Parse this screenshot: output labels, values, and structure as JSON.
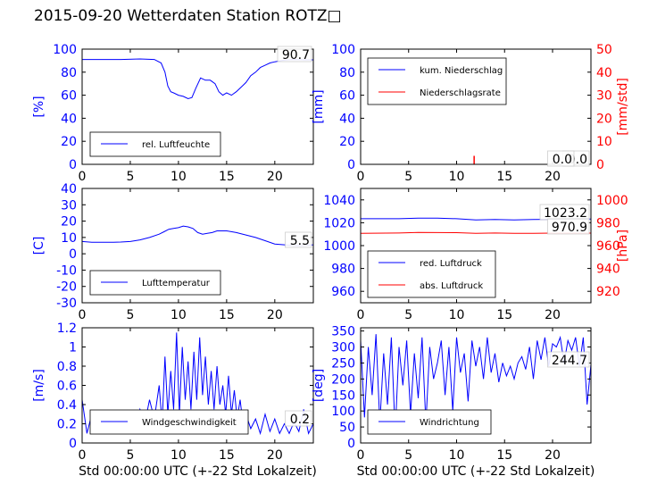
{
  "title": "2015-09-20 Wetterdaten Station ROTZ□",
  "chart_data": [
    {
      "type": "line",
      "xlim": [
        0,
        24
      ],
      "xticks": [
        0,
        5,
        10,
        15,
        20
      ],
      "ylabel": "[%]",
      "ylim": [
        0,
        100
      ],
      "yticks": [
        0,
        20,
        40,
        60,
        80,
        100
      ],
      "legend_position": "bottom-left",
      "series": [
        {
          "name": "rel. Luftfeuchte",
          "color": "#0000ff",
          "x": [
            0,
            2,
            4,
            6,
            7.5,
            8.2,
            8.6,
            8.9,
            9.2,
            9.5,
            10,
            10.5,
            11,
            11.4,
            11.8,
            12.3,
            12.8,
            13.3,
            13.8,
            14.2,
            14.6,
            15,
            15.5,
            16,
            16.5,
            17,
            17.5,
            18,
            18.5,
            19,
            19.5,
            20,
            21,
            22,
            23,
            24
          ],
          "values": [
            91,
            91,
            91,
            91.5,
            91,
            88,
            80,
            68,
            63,
            62,
            60,
            59,
            57,
            58,
            66,
            75,
            73,
            73,
            70,
            63,
            60,
            62,
            60,
            63,
            67,
            71,
            77,
            80,
            84,
            86,
            88,
            89,
            90.5,
            91,
            90.7,
            90.7
          ]
        }
      ],
      "annotations": [
        "90.7"
      ]
    },
    {
      "type": "line",
      "xlim": [
        0,
        24
      ],
      "xticks": [
        0,
        5,
        10,
        15,
        20
      ],
      "ylabel": "[mm]",
      "ylim": [
        0,
        100
      ],
      "yticks": [
        0,
        20,
        40,
        60,
        80,
        100
      ],
      "y2label": "[mm/std]",
      "y2lim": [
        0,
        50
      ],
      "y2ticks": [
        0,
        10,
        20,
        30,
        40,
        50
      ],
      "legend_position": "top-left",
      "series": [
        {
          "name": "kum. Niederschlag",
          "color": "#0000ff",
          "axis": "left",
          "x": [
            0,
            24
          ],
          "values": [
            0,
            0
          ]
        },
        {
          "name": "Niederschlagsrate",
          "color": "#ff0000",
          "axis": "right",
          "x": [
            0,
            11.8,
            11.8,
            11.85,
            11.85,
            24
          ],
          "values": [
            0,
            0,
            3.5,
            3.5,
            0,
            0
          ]
        }
      ],
      "annotations": [
        "0.0",
        "0.0"
      ]
    },
    {
      "type": "line",
      "xlim": [
        0,
        24
      ],
      "xticks": [
        0,
        5,
        10,
        15,
        20
      ],
      "ylabel": "[C]",
      "ylim": [
        -30,
        40
      ],
      "yticks": [
        -30,
        -20,
        -10,
        0,
        10,
        20,
        30,
        40
      ],
      "legend_position": "bottom-left",
      "series": [
        {
          "name": "Lufttemperatur",
          "color": "#0000ff",
          "x": [
            0,
            1,
            2,
            3,
            4,
            5,
            6,
            7,
            8,
            8.5,
            9,
            9.5,
            10,
            10.5,
            11,
            11.5,
            12,
            12.5,
            13,
            13.5,
            14,
            15,
            16,
            17,
            18,
            19,
            20,
            21,
            22,
            23,
            24
          ],
          "values": [
            7.5,
            7,
            7,
            7,
            7.2,
            7.5,
            8.5,
            10,
            12,
            13.5,
            15,
            15.5,
            16,
            17,
            16.5,
            15.5,
            13,
            12,
            12.5,
            13,
            14,
            14,
            13,
            11.5,
            10,
            8,
            6,
            5.5,
            5,
            5,
            5.5
          ]
        }
      ],
      "annotations": [
        "5.5"
      ]
    },
    {
      "type": "line",
      "xlim": [
        0,
        24
      ],
      "xticks": [
        0,
        5,
        10,
        15,
        20
      ],
      "ylim": [
        950,
        1050
      ],
      "yticks": [
        960,
        980,
        1000,
        1020,
        1040
      ],
      "y2label": "[hPa]",
      "y2lim": [
        910,
        1010
      ],
      "y2ticks": [
        920,
        940,
        960,
        980,
        1000
      ],
      "legend_position": "bottom-left",
      "series": [
        {
          "name": "red. Luftdruck",
          "color": "#0000ff",
          "axis": "left",
          "x": [
            0,
            4,
            6,
            8,
            10,
            12,
            14,
            16,
            18,
            20,
            22,
            24
          ],
          "values": [
            1023.5,
            1023.5,
            1024,
            1024,
            1023.5,
            1022.5,
            1022.8,
            1022.5,
            1022.8,
            1023,
            1023.2,
            1023.2
          ]
        },
        {
          "name": "abs. Luftdruck",
          "color": "#ff0000",
          "axis": "right",
          "x": [
            0,
            4,
            6,
            8,
            10,
            12,
            14,
            16,
            18,
            20,
            22,
            24
          ],
          "values": [
            970.8,
            971,
            971.5,
            971.4,
            971.3,
            970.8,
            971,
            970.7,
            970.8,
            970.9,
            970.9,
            970.9
          ]
        }
      ],
      "annotations": [
        "1023.2",
        "970.9"
      ]
    },
    {
      "type": "line",
      "xlim": [
        0,
        24
      ],
      "xticks": [
        0,
        5,
        10,
        15,
        20
      ],
      "xlabel": "Std 00:00:00 UTC (+-22 Std Lokalzeit)",
      "ylabel": "[m/s]",
      "ylim": [
        0,
        1.2
      ],
      "yticks": [
        0,
        0.2,
        0.4,
        0.6,
        0.8,
        1.0,
        1.2
      ],
      "legend_position": "bottom-left",
      "series": [
        {
          "name": "Windgeschwindigkeit",
          "color": "#0000ff",
          "x": [
            0,
            0.5,
            1,
            1.5,
            2,
            2.5,
            3,
            3.5,
            4,
            4.5,
            5,
            5.5,
            6,
            6.5,
            7,
            7.5,
            8,
            8.3,
            8.6,
            8.9,
            9.2,
            9.5,
            9.8,
            10.1,
            10.4,
            10.7,
            11,
            11.3,
            11.6,
            11.9,
            12.2,
            12.5,
            12.8,
            13.1,
            13.4,
            13.7,
            14,
            14.3,
            14.6,
            14.9,
            15.2,
            15.5,
            15.8,
            16.1,
            16.4,
            16.7,
            17,
            17.5,
            18,
            18.5,
            19,
            19.5,
            20,
            20.5,
            21,
            21.5,
            22,
            22.5,
            23,
            23.5,
            24
          ],
          "values": [
            0.45,
            0.1,
            0.3,
            0.15,
            0.28,
            0.1,
            0.32,
            0.12,
            0.25,
            0.15,
            0.3,
            0.12,
            0.35,
            0.2,
            0.45,
            0.25,
            0.6,
            0.2,
            0.9,
            0.3,
            0.75,
            0.35,
            1.15,
            0.3,
            1.0,
            0.45,
            0.85,
            0.35,
            0.95,
            0.45,
            1.1,
            0.5,
            0.9,
            0.4,
            0.75,
            0.35,
            0.8,
            0.4,
            0.6,
            0.3,
            0.7,
            0.3,
            0.55,
            0.25,
            0.45,
            0.2,
            0.3,
            0.15,
            0.25,
            0.1,
            0.3,
            0.12,
            0.25,
            0.1,
            0.2,
            0.1,
            0.22,
            0.12,
            0.35,
            0.1,
            0.2
          ]
        }
      ],
      "annotations": [
        "0.2"
      ]
    },
    {
      "type": "line",
      "xlim": [
        0,
        24
      ],
      "xticks": [
        0,
        5,
        10,
        15,
        20
      ],
      "xlabel": "Std 00:00:00 UTC (+-22 Std Lokalzeit)",
      "ylabel": "[deg]",
      "ylim": [
        0,
        360
      ],
      "yticks": [
        0,
        50,
        100,
        150,
        200,
        250,
        300,
        350
      ],
      "legend_position": "bottom-left",
      "series": [
        {
          "name": "Windrichtung",
          "color": "#0000ff",
          "x": [
            0,
            0.4,
            0.8,
            1.2,
            1.6,
            2,
            2.4,
            2.8,
            3.2,
            3.6,
            4,
            4.4,
            4.8,
            5.2,
            5.6,
            6,
            6.4,
            6.8,
            7.2,
            7.6,
            8,
            8.4,
            8.8,
            9.2,
            9.6,
            10,
            10.4,
            10.8,
            11.2,
            11.6,
            12,
            12.4,
            12.8,
            13.2,
            13.6,
            14,
            14.4,
            14.8,
            15.2,
            15.6,
            16,
            16.4,
            16.8,
            17.2,
            17.6,
            18,
            18.4,
            18.8,
            19.2,
            19.6,
            20,
            20.4,
            20.8,
            21.2,
            21.6,
            22,
            22.4,
            22.8,
            23.2,
            23.6,
            24
          ],
          "values": [
            320,
            80,
            300,
            150,
            340,
            60,
            280,
            120,
            330,
            30,
            300,
            180,
            320,
            90,
            280,
            140,
            330,
            60,
            300,
            200,
            250,
            320,
            150,
            300,
            100,
            330,
            220,
            280,
            130,
            320,
            240,
            300,
            200,
            330,
            220,
            280,
            190,
            250,
            210,
            240,
            200,
            250,
            270,
            230,
            300,
            200,
            320,
            260,
            330,
            240,
            310,
            300,
            330,
            250,
            320,
            290,
            330,
            240,
            330,
            120,
            245
          ]
        }
      ],
      "annotations": [
        "244.7"
      ]
    }
  ]
}
